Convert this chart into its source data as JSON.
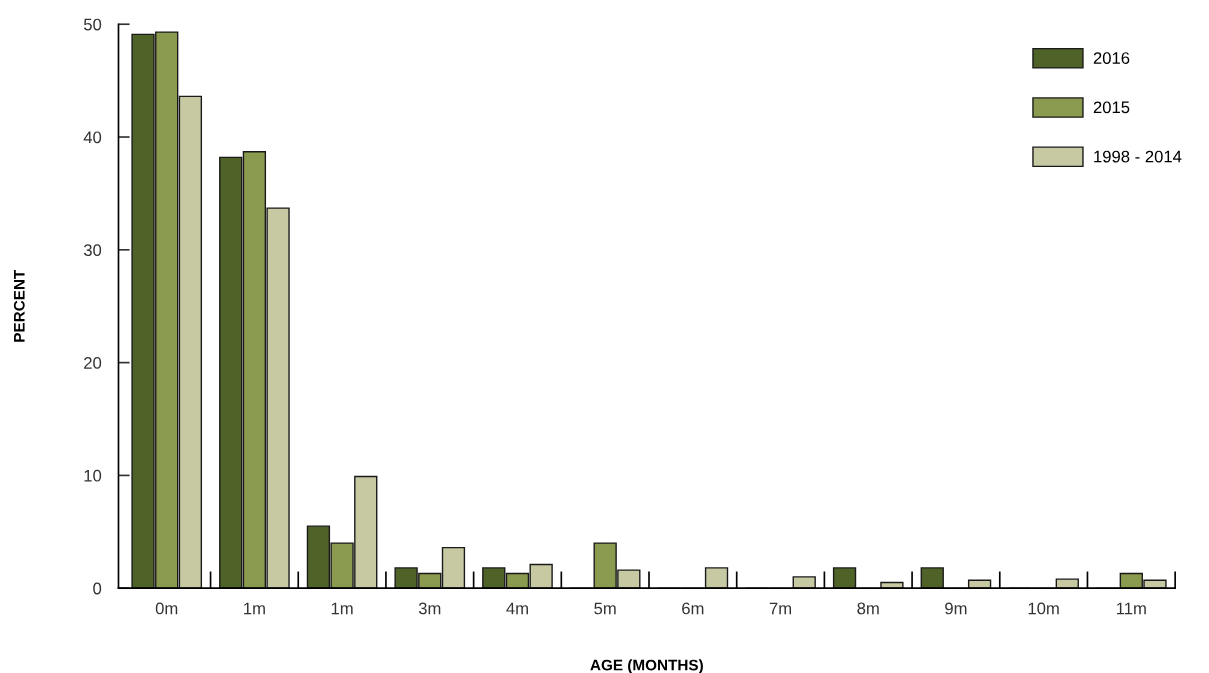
{
  "chart_data": {
    "type": "bar",
    "xlabel": "AGE (MONTHS)",
    "ylabel": "PERCENT",
    "categories": [
      "0m",
      "1m",
      "1m",
      "3m",
      "4m",
      "5m",
      "6m",
      "7m",
      "8m",
      "9m",
      "10m",
      "11m"
    ],
    "series": [
      {
        "name": "2016",
        "color": "#4f6228",
        "values": [
          49.1,
          38.2,
          5.5,
          1.8,
          1.8,
          0,
          0,
          0,
          1.8,
          1.8,
          0,
          0
        ]
      },
      {
        "name": "2015",
        "color": "#8a9a4f",
        "values": [
          49.3,
          38.7,
          4.0,
          1.3,
          1.3,
          4.0,
          0,
          0,
          0,
          0,
          0,
          1.3
        ]
      },
      {
        "name": "1998 - 2014",
        "color": "#c6c9a2",
        "values": [
          43.6,
          33.7,
          9.9,
          3.6,
          2.1,
          1.6,
          1.8,
          1.0,
          0.5,
          0.7,
          0.8,
          0.7
        ]
      }
    ],
    "ylim": [
      0,
      50
    ],
    "yticks": [
      0,
      10,
      20,
      30,
      40,
      50
    ],
    "grid": false,
    "legend": "top right"
  }
}
